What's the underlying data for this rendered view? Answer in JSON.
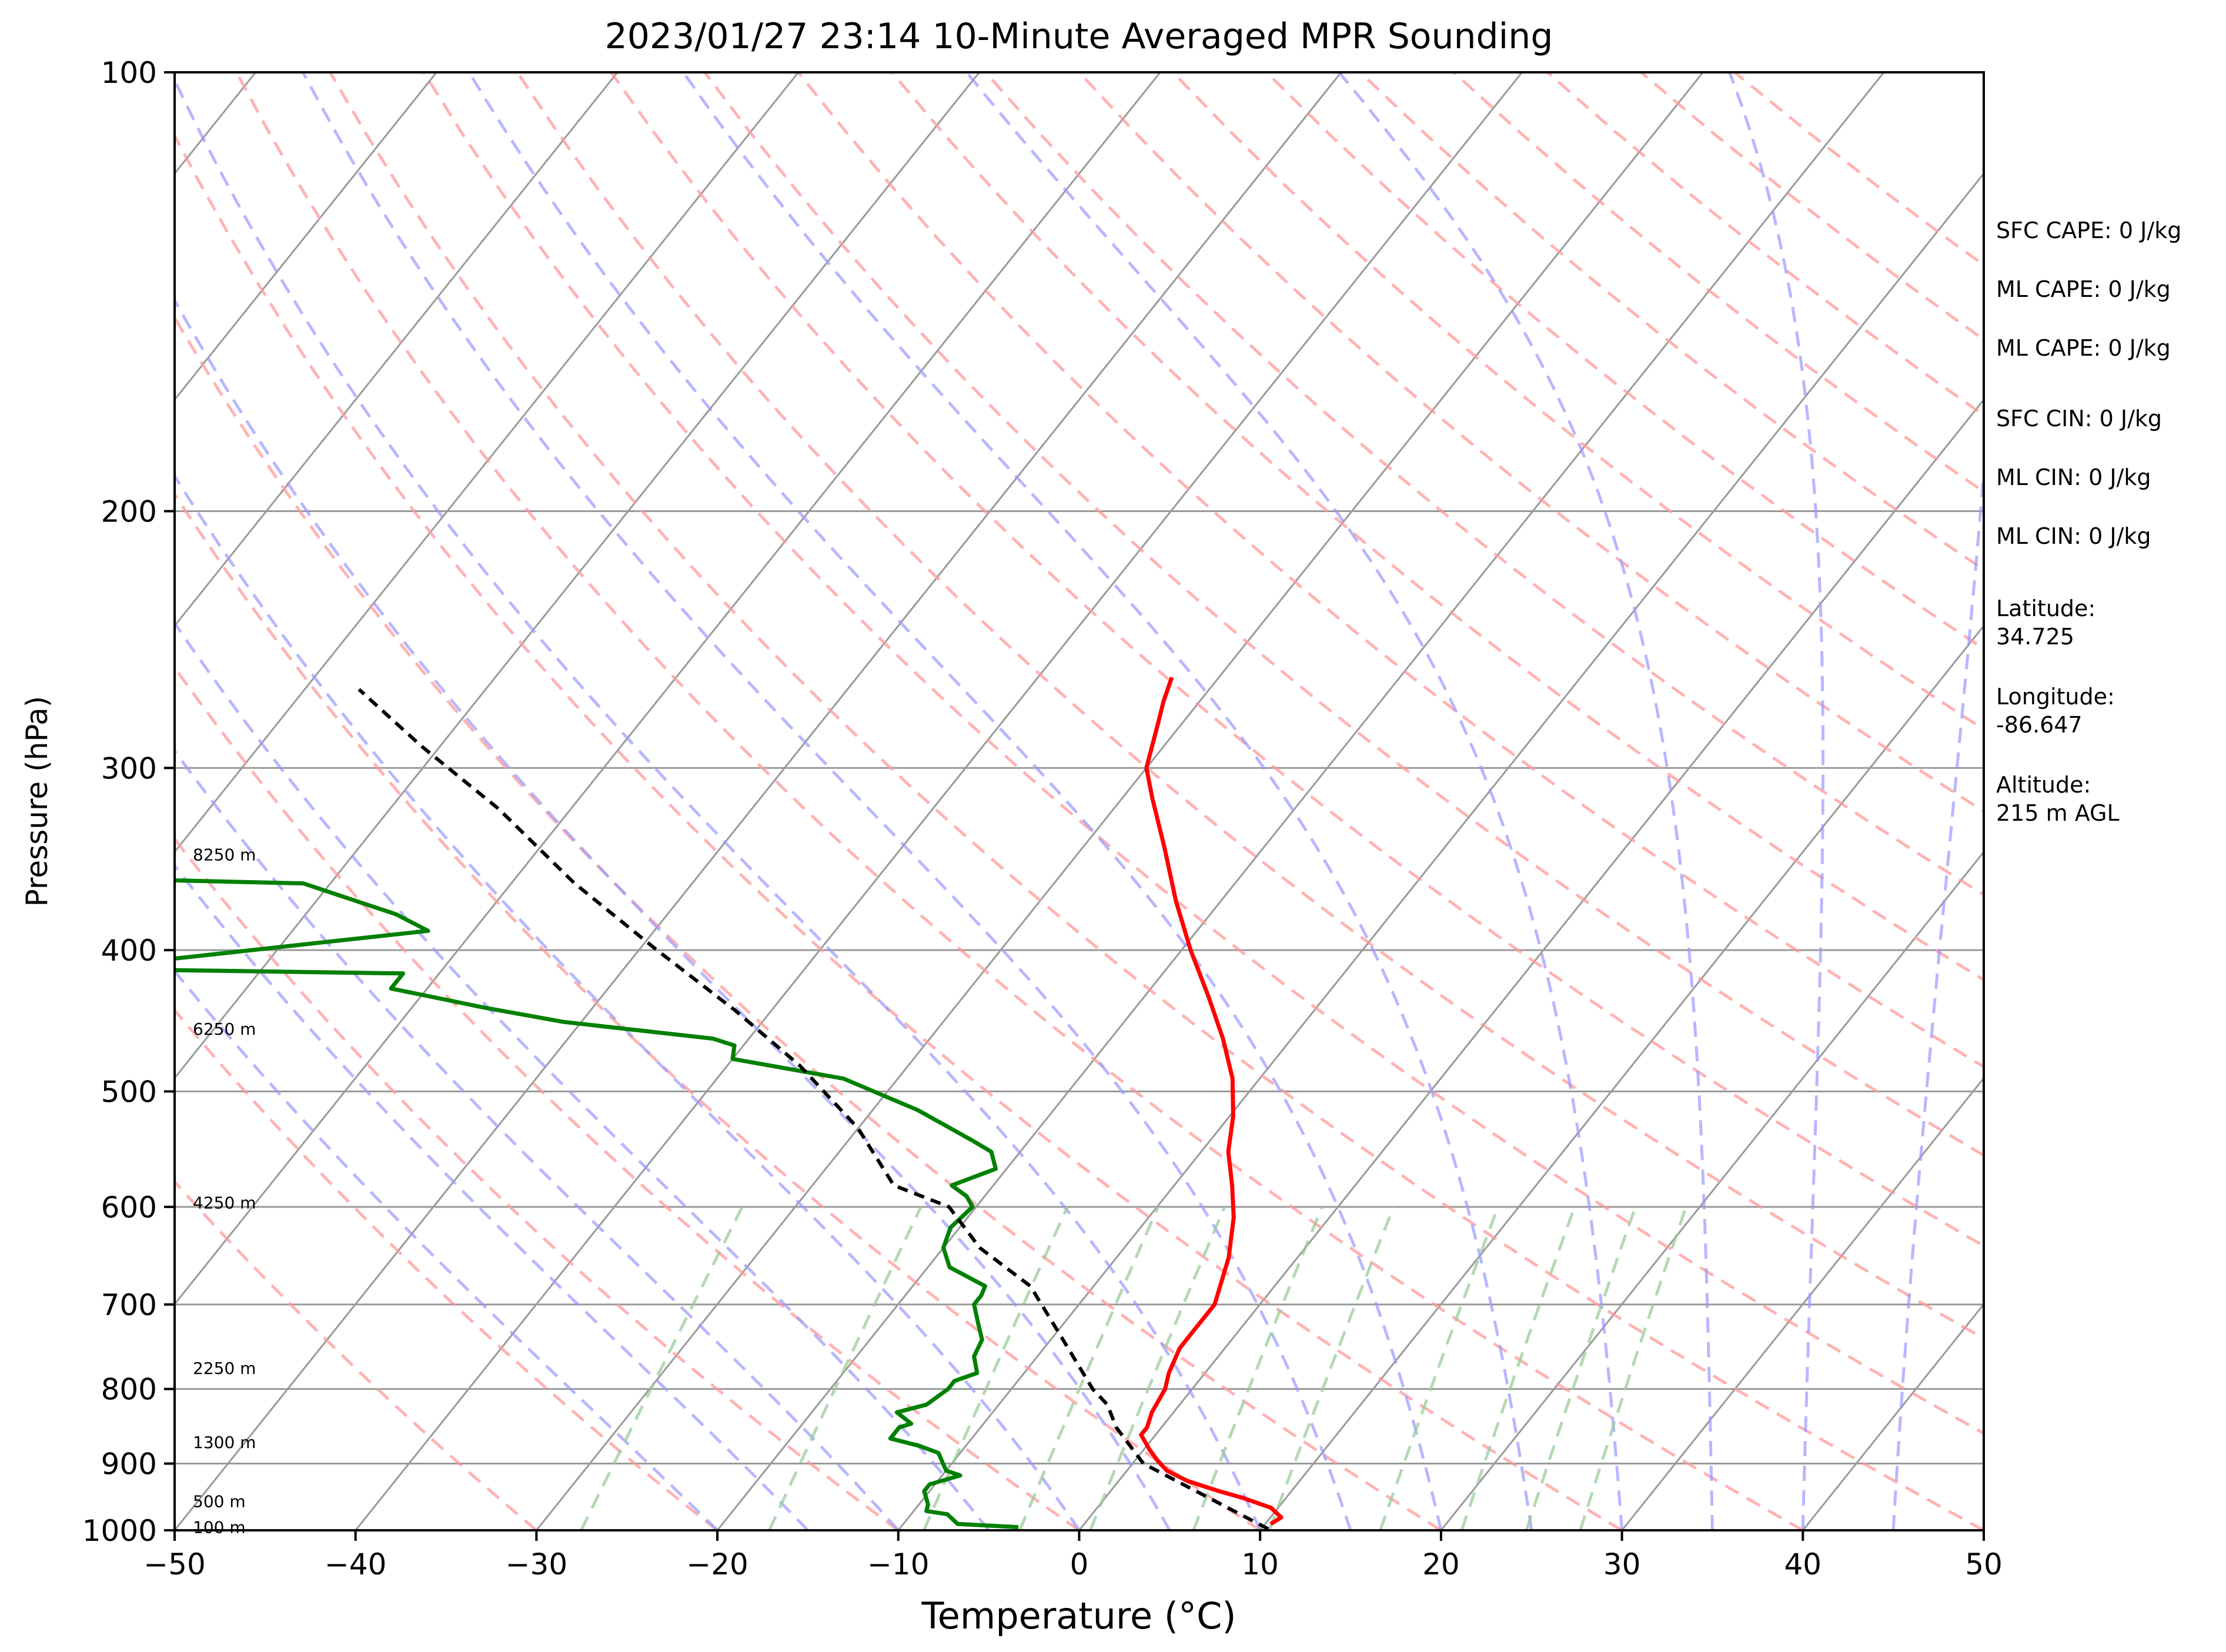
{
  "chart_data": {
    "type": "line",
    "title": "2023/01/27 23:14 10-Minute Averaged MPR Sounding",
    "xlabel": "Temperature (°C)",
    "ylabel": "Pressure (hPa)",
    "xlim": [
      -50,
      50
    ],
    "ylim": [
      1000,
      100
    ],
    "y_scale": "log",
    "skew": "skew-T",
    "x_ticks": [
      "−50",
      "−40",
      "−30",
      "−20",
      "−10",
      "0",
      "10",
      "20",
      "30",
      "40",
      "50"
    ],
    "y_ticks": [
      "100",
      "200",
      "300",
      "400",
      "500",
      "600",
      "700",
      "800",
      "900",
      "1000"
    ],
    "grid": true,
    "colors": {
      "temperature": "#ff0000",
      "dewpoint": "#008000",
      "parcel": "#000000",
      "dry_adiabats": "#ff9999",
      "moist_adiabats": "#9999ff",
      "mixing_ratio": "#99cc99",
      "isotherms": "#999999"
    },
    "series": [
      {
        "role": "temperature",
        "points": [
          [
            10.3,
            990
          ],
          [
            10.6,
            980
          ],
          [
            9.6,
            965
          ],
          [
            7.6,
            950
          ],
          [
            6.0,
            940
          ],
          [
            3.8,
            925
          ],
          [
            2.2,
            910
          ],
          [
            1.2,
            895
          ],
          [
            0.3,
            880
          ],
          [
            -0.8,
            860
          ],
          [
            -0.8,
            850
          ],
          [
            -1.2,
            830
          ],
          [
            -1.3,
            820
          ],
          [
            -1.5,
            800
          ],
          [
            -2.0,
            780
          ],
          [
            -2.5,
            750
          ],
          [
            -2.5,
            730
          ],
          [
            -2.5,
            700
          ],
          [
            -3.8,
            650
          ],
          [
            -5.3,
            610
          ],
          [
            -6.8,
            580
          ],
          [
            -8.5,
            550
          ],
          [
            -9.8,
            520
          ],
          [
            -11.5,
            490
          ],
          [
            -13.8,
            460
          ],
          [
            -16.5,
            430
          ],
          [
            -19.5,
            400
          ],
          [
            -22.5,
            370
          ],
          [
            -25.5,
            340
          ],
          [
            -28.3,
            315
          ],
          [
            -30.0,
            300
          ],
          [
            -31.3,
            280
          ],
          [
            -32.0,
            270
          ],
          [
            -32.6,
            260
          ]
        ]
      },
      {
        "role": "dewpoint",
        "points": [
          [
            -3.5,
            995
          ],
          [
            -7.0,
            990
          ],
          [
            -8.0,
            975
          ],
          [
            -9.3,
            970
          ],
          [
            -9.5,
            960
          ],
          [
            -10.3,
            940
          ],
          [
            -10.3,
            930
          ],
          [
            -9.0,
            917
          ],
          [
            -10.0,
            910
          ],
          [
            -11.2,
            885
          ],
          [
            -12.6,
            875
          ],
          [
            -14.5,
            865
          ],
          [
            -14.5,
            850
          ],
          [
            -14.0,
            845
          ],
          [
            -15.3,
            830
          ],
          [
            -14.0,
            820
          ],
          [
            -13.5,
            800
          ],
          [
            -13.5,
            790
          ],
          [
            -12.6,
            780
          ],
          [
            -13.5,
            760
          ],
          [
            -13.8,
            740
          ],
          [
            -14.8,
            720
          ],
          [
            -15.8,
            700
          ],
          [
            -15.8,
            690
          ],
          [
            -16.0,
            680
          ],
          [
            -18.8,
            660
          ],
          [
            -20.0,
            640
          ],
          [
            -20.5,
            620
          ],
          [
            -20.2,
            600
          ],
          [
            -21.0,
            590
          ],
          [
            -22.3,
            580
          ],
          [
            -20.6,
            565
          ],
          [
            -21.6,
            550
          ],
          [
            -23.2,
            540
          ],
          [
            -27.5,
            515
          ],
          [
            -33.0,
            490
          ],
          [
            -40.0,
            475
          ],
          [
            -40.5,
            465
          ],
          [
            -42.0,
            460
          ],
          [
            -51.0,
            448
          ],
          [
            -56.0,
            438
          ],
          [
            -62.0,
            425
          ],
          [
            -62.0,
            415
          ],
          [
            -80.0,
            412
          ],
          [
            -62.5,
            388
          ],
          [
            -65.0,
            378
          ],
          [
            -71.5,
            360
          ],
          [
            -80.0,
            358
          ]
        ]
      },
      {
        "role": "parcel",
        "points": [
          [
            10.4,
            998
          ],
          [
            0.6,
            900
          ],
          [
            -2.5,
            850
          ],
          [
            -4.0,
            820
          ],
          [
            -5.5,
            800
          ],
          [
            -10.0,
            730
          ],
          [
            -13.5,
            680
          ],
          [
            -18.0,
            640
          ],
          [
            -21.5,
            600
          ],
          [
            -25.5,
            580
          ],
          [
            -30.0,
            530
          ],
          [
            -36.0,
            480
          ],
          [
            -42.0,
            440
          ],
          [
            -49.0,
            400
          ],
          [
            -56.5,
            360
          ],
          [
            -64.0,
            320
          ],
          [
            -71.0,
            290
          ],
          [
            -77.0,
            265
          ]
        ]
      }
    ],
    "height_labels": [
      {
        "label": "8250 m",
        "p": 344
      },
      {
        "label": "6250 m",
        "p": 453
      },
      {
        "label": "4250 m",
        "p": 596
      },
      {
        "label": "2250 m",
        "p": 774
      },
      {
        "label": "1300 m",
        "p": 870
      },
      {
        "label": "500 m",
        "p": 955
      },
      {
        "label": "100 m",
        "p": 995
      }
    ],
    "annotations": [
      "SFC CAPE: 0 J/kg",
      "ML CAPE: 0 J/kg",
      "ML CAPE: 0 J/kg",
      "SFC CIN: 0 J/kg",
      "ML CIN: 0 J/kg",
      "ML CIN: 0 J/kg",
      "Latitude:\n34.725",
      "Longitude:\n-86.647",
      "Altitude:\n215 m AGL"
    ]
  }
}
